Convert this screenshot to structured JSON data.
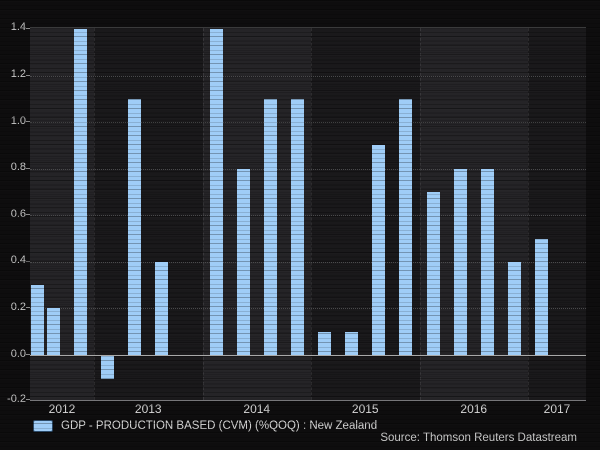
{
  "chart_data": {
    "type": "bar",
    "title": "",
    "series": [
      {
        "name": "GDP - PRODUCTION BASED (CVM) (%QOQ) : New Zealand",
        "color": "#9fcdf7",
        "points": [
          {
            "period": "2012 Q2",
            "value": 0.3
          },
          {
            "period": "2012 Q3",
            "value": 0.2
          },
          {
            "period": "2012 Q4",
            "value": 1.4
          },
          {
            "period": "2013 Q1",
            "value": -0.1
          },
          {
            "period": "2013 Q2",
            "value": 1.1
          },
          {
            "period": "2013 Q3",
            "value": 0.4
          },
          {
            "period": "2013 Q4",
            "value": null
          },
          {
            "period": "2014 Q1",
            "value": 1.4
          },
          {
            "period": "2014 Q2",
            "value": 0.8
          },
          {
            "period": "2014 Q3",
            "value": 1.1
          },
          {
            "period": "2014 Q4",
            "value": 1.1
          },
          {
            "period": "2015 Q1",
            "value": 0.1
          },
          {
            "period": "2015 Q2",
            "value": 0.1
          },
          {
            "period": "2015 Q3",
            "value": 0.9
          },
          {
            "period": "2015 Q4",
            "value": 1.1
          },
          {
            "period": "2016 Q1",
            "value": 0.7
          },
          {
            "period": "2016 Q2",
            "value": 0.8
          },
          {
            "period": "2016 Q3",
            "value": 0.8
          },
          {
            "period": "2016 Q4",
            "value": 0.4
          },
          {
            "period": "2017 Q1",
            "value": 0.5
          }
        ]
      }
    ],
    "x_axis": {
      "year_labels": [
        "2012",
        "2013",
        "2014",
        "2015",
        "2016",
        "2017"
      ]
    },
    "y_axis": {
      "ticks": [
        1.4,
        1.2,
        1.0,
        0.8,
        0.6,
        0.4,
        0.2,
        0.0,
        -0.2
      ],
      "tick_labels": [
        "1.4",
        "1.2",
        "1.0",
        "0.8",
        "0.6",
        "0.4",
        "0.2",
        "0.0",
        "-0.2"
      ],
      "range": [
        -0.2,
        1.4
      ]
    },
    "grid": "horizontal-dotted",
    "legend_position": "bottom-left"
  },
  "legend": {
    "label": "GDP - PRODUCTION BASED (CVM) (%QOQ) : New Zealand"
  },
  "source": {
    "text": "Source: Thomson Reuters Datastream"
  },
  "colors": {
    "figure_bg": "#0e0d0e",
    "band_light": "#252427",
    "band_dark": "#1a191b",
    "bar": "#9fcdf7",
    "baseline": "#a9a9a9",
    "gridline": "#4a4a4c",
    "axis_text": "#c9c9c9"
  }
}
